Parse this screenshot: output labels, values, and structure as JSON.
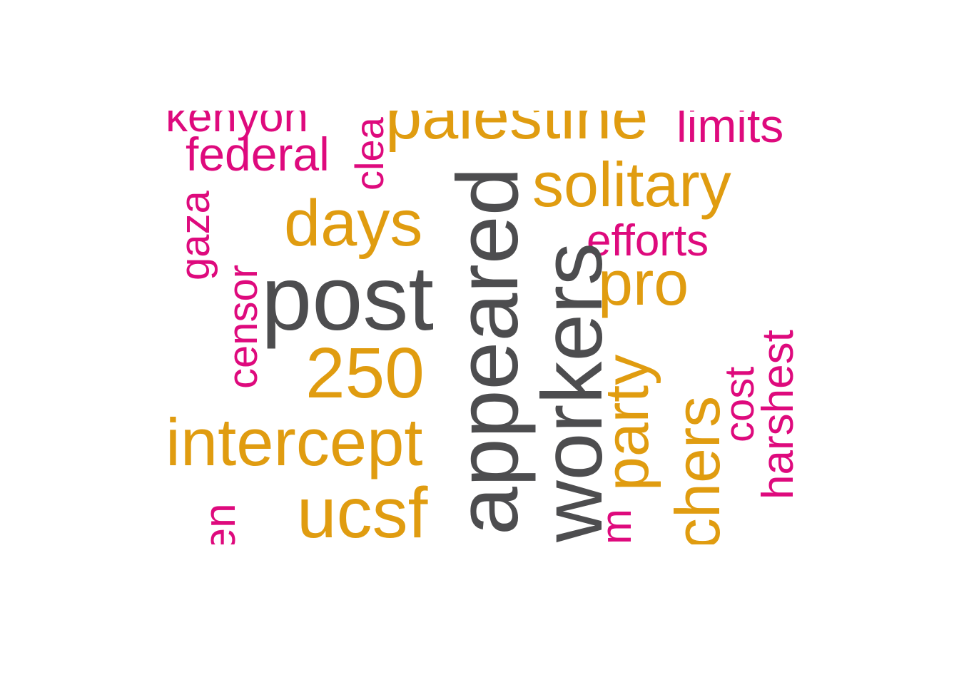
{
  "colors": {
    "dark": "#4d4d4f",
    "gold": "#e09c10",
    "pink": "#de0a7d",
    "background": "#ffffff"
  },
  "words": {
    "kenyon": "kenyon",
    "clear": "clea",
    "palestine": "palestine",
    "limits": "limits",
    "federal": "federal",
    "solitary": "solitary",
    "gaza": "gaza",
    "days": "days",
    "appeared": "appeared",
    "efforts": "efforts",
    "censor": "censor",
    "post": "post",
    "workers": "workers",
    "pro": "pro",
    "harshest": "harshest",
    "party": "party",
    "cost": "cost",
    "n250": "250",
    "intercept": "intercept",
    "chers": "chers",
    "ucsf": "ucsf",
    "children": "ren",
    "m": "m"
  }
}
